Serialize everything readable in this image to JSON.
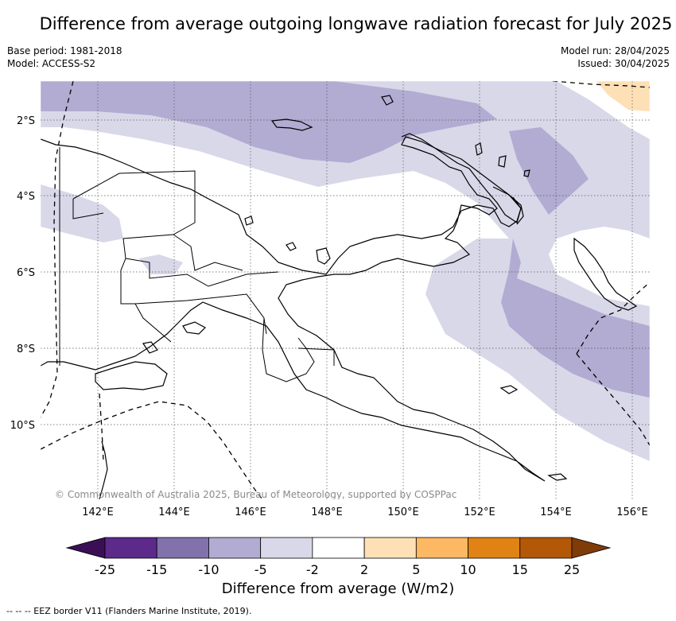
{
  "title": "Difference from average outgoing longwave radiation forecast for July 2025",
  "meta_left": [
    "Base period: 1981-2018",
    "Model: ACCESS-S2"
  ],
  "meta_right": [
    "Model run: 28/04/2025",
    "Issued: 30/04/2025"
  ],
  "copyright": "© Commonwealth of Australia 2025, Bureau of Meteorology, supported by COSPPac",
  "lat_labels": [
    "2°S",
    "4°S",
    "6°S",
    "8°S",
    "10°S"
  ],
  "lon_labels": [
    "142°E",
    "144°E",
    "146°E",
    "148°E",
    "150°E",
    "152°E",
    "154°E",
    "156°E"
  ],
  "colorbar": {
    "title": "Difference from average (W/m2)",
    "labels": [
      "-25",
      "-15",
      "-10",
      "-5",
      "-2",
      "2",
      "5",
      "10",
      "15",
      "25"
    ],
    "colors": [
      "#3b0f55",
      "#5b2a8b",
      "#8172ab",
      "#b2abd2",
      "#d8d8e9",
      "#ffffff",
      "#fee0b6",
      "#fdb863",
      "#e08214",
      "#b35806",
      "#7f3b08"
    ]
  },
  "footer": "-- -- -- EEZ border V11 (Flanders Marine Institute, 2019)."
}
